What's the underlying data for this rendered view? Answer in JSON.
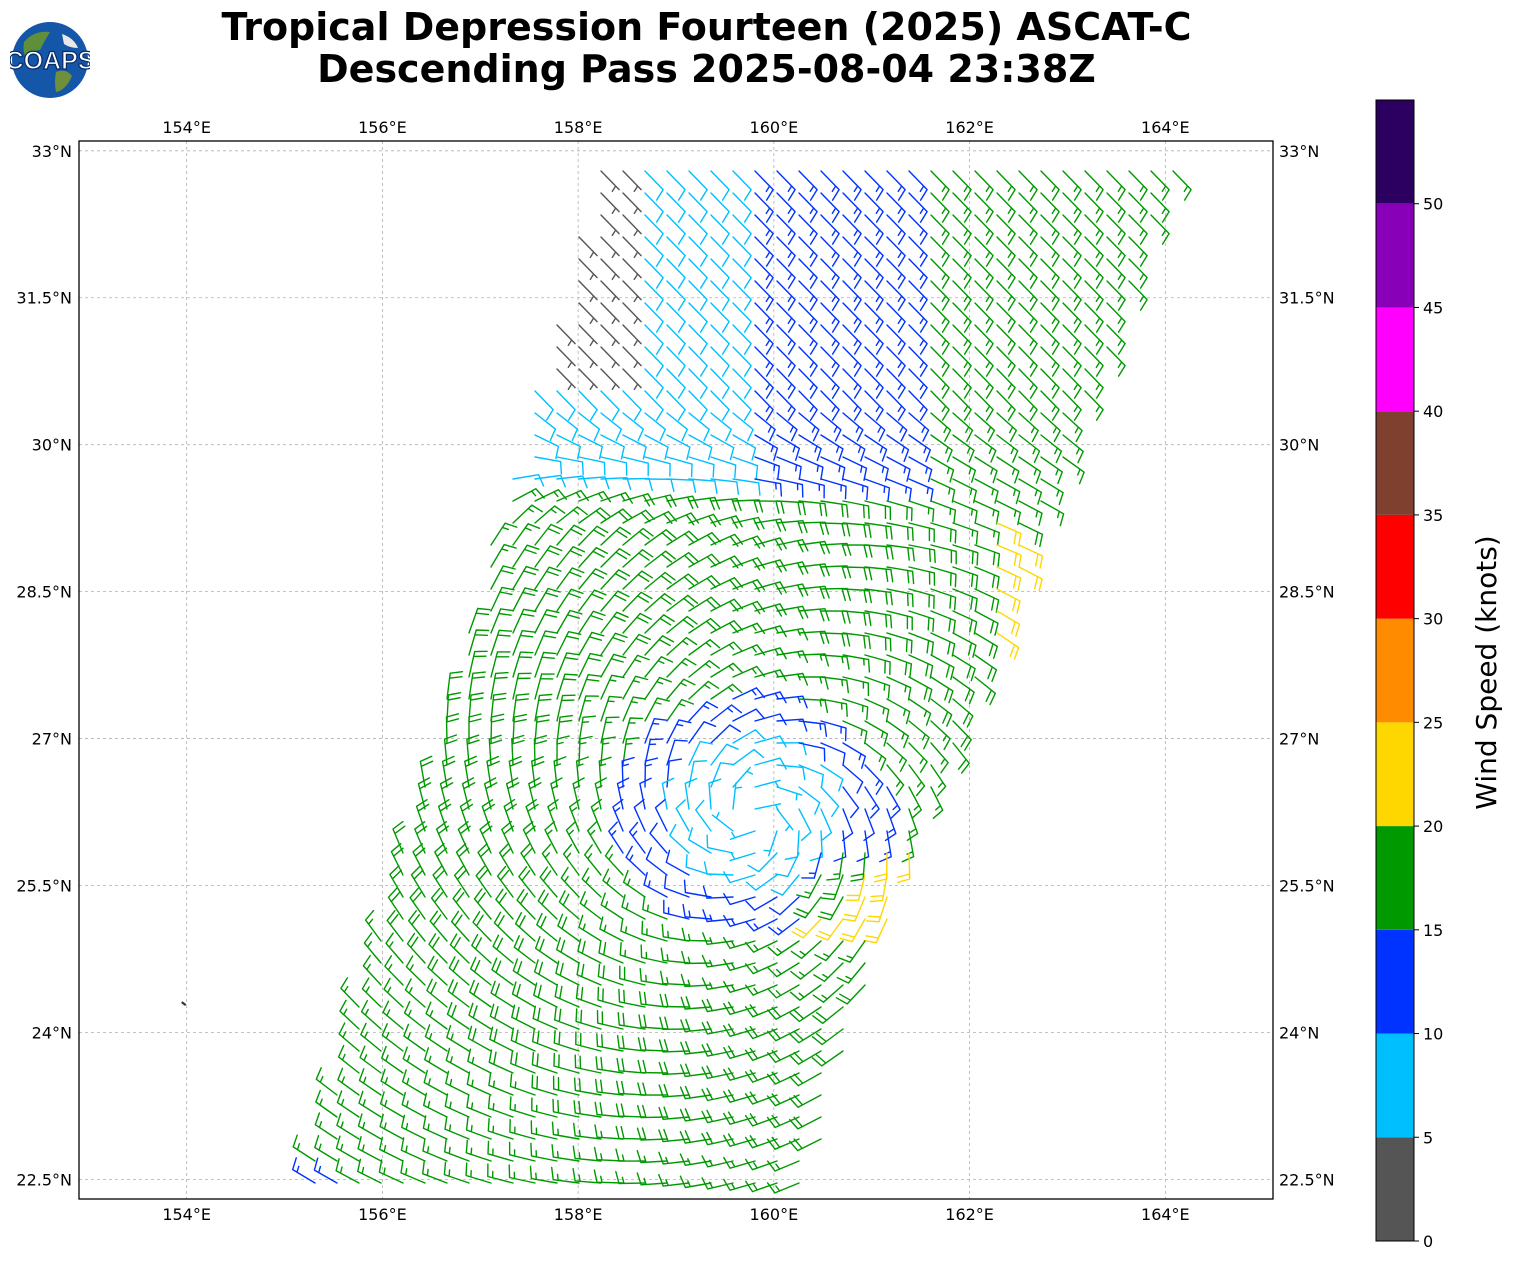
{
  "header": {
    "logo_text": "COAPS",
    "title_line1": "Tropical Depression Fourteen (2025) ASCAT-C",
    "title_line2": "Descending Pass 2025-08-04 23:38Z"
  },
  "map": {
    "lon_range": [
      152.9,
      165.1
    ],
    "lat_range": [
      22.3,
      33.1
    ],
    "lon_ticks": [
      154,
      156,
      158,
      160,
      162,
      164
    ],
    "lon_tick_labels": [
      "154°E",
      "156°E",
      "158°E",
      "160°E",
      "162°E",
      "164°E"
    ],
    "lat_ticks": [
      22.5,
      24,
      25.5,
      27,
      28.5,
      30,
      31.5,
      33
    ],
    "lat_tick_labels": [
      "22.5°N",
      "24°N",
      "25.5°N",
      "27°N",
      "28.5°N",
      "30°N",
      "31.5°N",
      "33°N"
    ],
    "gridlines": true,
    "storm_center": {
      "lon": 159.8,
      "lat": 26.2
    },
    "island": {
      "lon": 153.97,
      "lat": 24.3
    },
    "swath_corners_lonlat": [
      [
        155.2,
        22.3
      ],
      [
        157.4,
        30.0
      ],
      [
        158.2,
        32.9
      ],
      [
        164.1,
        32.8
      ],
      [
        161.3,
        25.5
      ],
      [
        160.3,
        22.3
      ]
    ]
  },
  "colorbar": {
    "label": "Wind Speed (knots)",
    "tick_labels": [
      "0",
      "5",
      "10",
      "15",
      "20",
      "25",
      "30",
      "35",
      "40",
      "45",
      "50"
    ],
    "bins": [
      {
        "min": 0,
        "max": 5,
        "color": "#555555"
      },
      {
        "min": 5,
        "max": 10,
        "color": "#00bfff"
      },
      {
        "min": 10,
        "max": 15,
        "color": "#0033ff"
      },
      {
        "min": 15,
        "max": 20,
        "color": "#009900"
      },
      {
        "min": 20,
        "max": 25,
        "color": "#ffd700"
      },
      {
        "min": 25,
        "max": 30,
        "color": "#ff8c00"
      },
      {
        "min": 30,
        "max": 35,
        "color": "#ff0000"
      },
      {
        "min": 35,
        "max": 40,
        "color": "#804030"
      },
      {
        "min": 40,
        "max": 45,
        "color": "#ff00ff"
      },
      {
        "min": 45,
        "max": 50,
        "color": "#8800b8"
      },
      {
        "min": 50,
        "max": 55,
        "color": "#2c0060"
      }
    ]
  }
}
